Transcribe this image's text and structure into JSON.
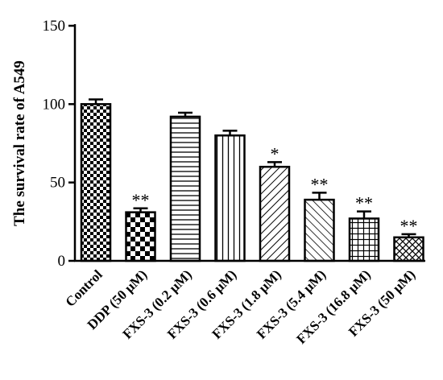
{
  "chart_data": {
    "type": "bar",
    "title": "",
    "xlabel": "",
    "ylabel": "The survival rate of A549",
    "ylim": [
      0,
      150
    ],
    "yticks": [
      0,
      50,
      100,
      150
    ],
    "grid": false,
    "legend": "none",
    "categories": [
      "Control",
      "DDP (50 μM)",
      "FXS-3 (0.2 μM)",
      "FXS-3 (0.6 μM)",
      "FXS-3 (1.8 μM)",
      "FXS-3 (5.4 μM)",
      "FXS-3 (16.8 μM)",
      "FXS-3 (50 μM)"
    ],
    "values": [
      100,
      31,
      92,
      80,
      60,
      39,
      27,
      15
    ],
    "errors": [
      3,
      2.5,
      2.5,
      3,
      3,
      4.5,
      4.5,
      2
    ],
    "annotations": [
      "",
      "**",
      "",
      "",
      "*",
      "**",
      "**",
      "**"
    ],
    "patterns": [
      "checker-small",
      "checker-large",
      "horizontal-lines",
      "vertical-lines",
      "diagonal-back",
      "diagonal-forward",
      "grid",
      "crosshatch"
    ],
    "colors": {
      "bar_fill": "#ffffff",
      "ink": "#000000"
    }
  }
}
